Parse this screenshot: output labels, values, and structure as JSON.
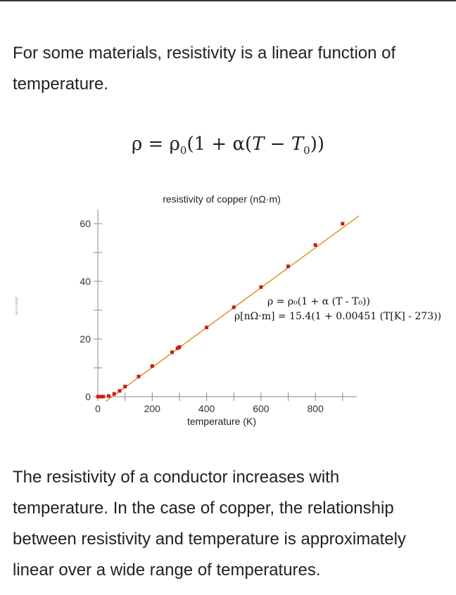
{
  "intro_text": "For some materials, resistivity is a linear function of temperature.",
  "formula": {
    "lhs": "ρ = ρ",
    "sub1": "0",
    "mid": "(1 + α(",
    "var_t": "T",
    "minus": " − ",
    "var_t0": "T",
    "sub2": "0",
    "end": "))"
  },
  "chart_data": {
    "type": "scatter",
    "title": "resistivity of copper (nΩ·m)",
    "xlabel": "temperature (K)",
    "ylabel": "",
    "xlim": [
      0,
      960
    ],
    "ylim": [
      0,
      65
    ],
    "xticks": [
      0,
      200,
      400,
      600,
      800
    ],
    "yticks": [
      0,
      20,
      40,
      60
    ],
    "grid": false,
    "colors": {
      "points": "#cc1a1a",
      "fit_line": "#e08a12"
    },
    "series": [
      {
        "type": "scatter",
        "x": [
          1,
          10,
          20,
          40,
          60,
          80,
          100,
          150,
          200,
          273,
          293,
          300,
          400,
          500,
          600,
          700,
          800,
          900
        ],
        "y": [
          0.02,
          0.02,
          0.03,
          0.24,
          0.97,
          2.0,
          3.5,
          7.0,
          10.6,
          15.4,
          16.8,
          17.2,
          24.0,
          31.0,
          38.0,
          45.2,
          52.6,
          60.0
        ]
      },
      {
        "type": "line",
        "x": [
          30,
          960
        ],
        "y": [
          -1.6,
          62.7
        ]
      }
    ],
    "annotations": [
      "ρ = ρ₀(1 + α (T - T₀))",
      "ρ[nΩ·m] = 15.4(1 + 0.00451 (T[K] - 273))"
    ],
    "watermark": "physics.info"
  },
  "outro_text": "The resistivity of a conductor increases with temperature. In the case of copper, the relationship between resistivity and temperature is approximately linear over a wide range of temperatures."
}
